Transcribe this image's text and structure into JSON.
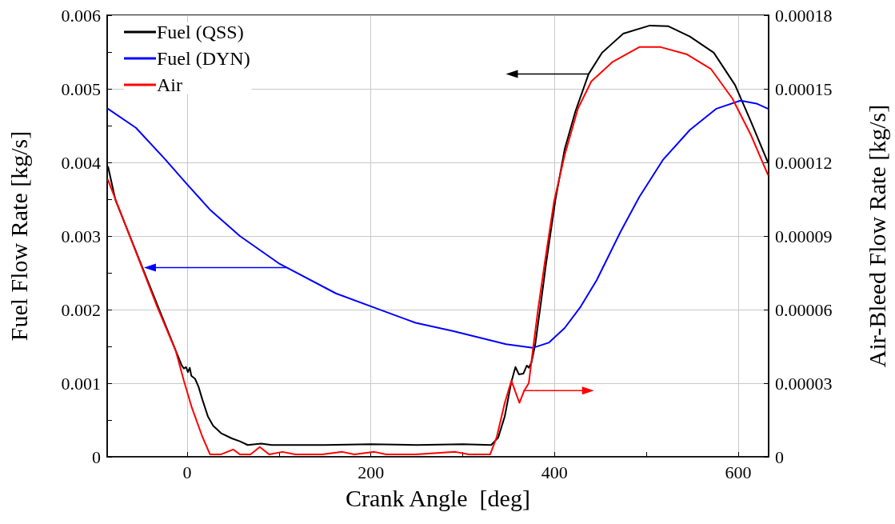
{
  "chart_data": {
    "type": "line",
    "xlabel": "Crank Angle  [deg]",
    "ylabel": "Fuel Flow Rate [kg/s]",
    "y2label": "Air-Bleed Flow Rate [kg/s]",
    "xlim": [
      -87,
      633
    ],
    "xticks": [
      0,
      {
        "value": 100,
        "label": null
      },
      200,
      {
        "value": 300,
        "label": null
      },
      400,
      {
        "value": 500,
        "label": null
      },
      600
    ],
    "ylim": [
      0,
      0.006
    ],
    "yticks": [
      0,
      {
        "value": 0.0005,
        "label": null
      },
      0.001,
      {
        "value": 0.0015,
        "label": null
      },
      0.002,
      {
        "value": 0.0025,
        "label": null
      },
      0.003,
      {
        "value": 0.0035,
        "label": null
      },
      0.004,
      {
        "value": 0.0045,
        "label": null
      },
      0.005,
      {
        "value": 0.0055,
        "label": null
      },
      0.006
    ],
    "y2lim": [
      0,
      0.00018
    ],
    "y2ticks": [
      0,
      {
        "value": 3e-05,
        "label": "0.00003"
      },
      {
        "value": 6e-05,
        "label": "0.00006"
      },
      {
        "value": 9e-05,
        "label": "0.00009"
      },
      0.00012,
      0.00015,
      0.00018
    ],
    "grid": true,
    "legend": "top left",
    "line_style": "solid",
    "series": [
      {
        "name": "Fuel (QSS)",
        "color": "#000000",
        "x": [
          -86,
          -78,
          -31,
          -5.8,
          -3.5,
          -1.2,
          0.9,
          2.9,
          4.6,
          8.7,
          12.5,
          16.8,
          22.6,
          28.4,
          37.1,
          48.7,
          57.4,
          66,
          80.6,
          92,
          150,
          200,
          250,
          300,
          331,
          338.6,
          345.8,
          353,
          357.4,
          361.2,
          366,
          369.8,
          371.9,
          374.8,
          379,
          385,
          390.7,
          400.9,
          411,
          422.6,
          437,
          451.6,
          474.8,
          503.7,
          524,
          547.2,
          573.3,
          596.5,
          613.9,
          632.2
        ],
        "values": [
          0.00394,
          0.00349,
          0.00202,
          0.00124,
          0.0012,
          0.00122,
          0.00115,
          0.00121,
          0.0011,
          0.00106,
          0.00095,
          0.00077,
          0.00055,
          0.00042,
          0.00032,
          0.00025,
          0.00021,
          0.00016,
          0.00018,
          0.00016,
          0.00016,
          0.00017,
          0.00016,
          0.00017,
          0.00016,
          0.00026,
          0.00055,
          0.00102,
          0.00122,
          0.00112,
          0.00113,
          0.00124,
          0.00121,
          0.00128,
          0.00153,
          0.00208,
          0.00262,
          0.00349,
          0.00418,
          0.00469,
          0.0052,
          0.00549,
          0.00575,
          0.00586,
          0.00585,
          0.00571,
          0.00549,
          0.00505,
          0.00455,
          0.004
        ]
      },
      {
        "name": "Fuel (DYN)",
        "color": "#0000ff",
        "x": [
          -86.3,
          -55.7,
          -23.7,
          -0.6,
          25.5,
          57.4,
          100.9,
          162,
          205.2,
          248.7,
          289.2,
          347.2,
          376.2,
          393.6,
          411,
          428.4,
          445.8,
          454.5,
          471.9,
          492.2,
          518.3,
          547.2,
          576.2,
          602.3,
          619.7,
          632.2
        ],
        "values": [
          0.00473,
          0.00447,
          0.00404,
          0.00371,
          0.00335,
          0.003,
          0.00262,
          0.00222,
          0.00202,
          0.00182,
          0.00171,
          0.00153,
          0.00148,
          0.00155,
          0.00175,
          0.00204,
          0.0024,
          0.00262,
          0.00306,
          0.00353,
          0.00404,
          0.00444,
          0.00473,
          0.00484,
          0.0048,
          0.00473
        ]
      },
      {
        "name": "Air",
        "color": "#ff0000",
        "axis": "y2",
        "x": [
          -86.3,
          -32.4,
          -12.2,
          -3.5,
          5.2,
          16.8,
          24.9,
          37.1,
          50.1,
          57.4,
          69,
          79.1,
          89.3,
          103.8,
          118,
          147,
          169,
          182,
          203.8,
          216.8,
          248.7,
          292,
          306.7,
          329.9,
          337,
          345.8,
          353,
          361.7,
          367,
          371.9,
          376.2,
          382,
          389.3,
          399.4,
          411,
          425.5,
          440,
          463.2,
          492.2,
          515.4,
          544.3,
          570.4,
          593.6,
          613.9,
          632.2
        ],
        "values": [
          0.000113,
          6.1e-05,
          4.3e-05,
          3.1e-05,
          2e-05,
          8e-06,
          1e-06,
          1e-06,
          3e-06,
          1e-06,
          1e-06,
          4e-06,
          1e-06,
          2e-06,
          1e-06,
          1e-06,
          2e-06,
          1e-06,
          2e-06,
          1e-06,
          1e-06,
          2e-06,
          1e-06,
          1e-06,
          8e-06,
          2.2e-05,
          3.1e-05,
          2.2e-05,
          2.7e-05,
          3e-05,
          4.3e-05,
          6e-05,
          7.9e-05,
          0.000104,
          0.000123,
          0.000142,
          0.000153,
          0.000161,
          0.000167,
          0.000167,
          0.000164,
          0.000158,
          0.000146,
          0.000131,
          0.000115
        ]
      }
    ]
  }
}
